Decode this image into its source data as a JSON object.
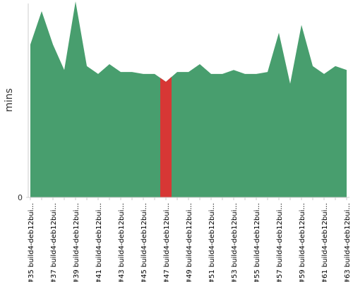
{
  "chart_data": {
    "type": "area",
    "y_label": "mins",
    "categories": [
      "#35 build4-deb12bui...",
      null,
      "#37 build4-deb12bui...",
      null,
      "#39 build4-deb12bui...",
      null,
      "#41 build4-deb12bui...",
      null,
      "#43 build4-deb12bui...",
      null,
      "#45 build4-deb12bui...",
      null,
      "#47 build4-deb12bui...",
      null,
      "#49 build4-deb12bui...",
      null,
      "#51 build4-deb12bui...",
      null,
      "#53 build4-deb12bui...",
      null,
      "#55 build4-deb12bui...",
      null,
      "#57 build4-deb12bui...",
      null,
      "#59 build4-deb12bui...",
      null,
      "#61 build4-deb12bui...",
      null,
      "#63 build4-deb12bui..."
    ],
    "series": [
      {
        "color": "#489e6e",
        "values": [
          78,
          95,
          78,
          65,
          100,
          67,
          63,
          68,
          64,
          64,
          63,
          63,
          59,
          64,
          64,
          68,
          63,
          63,
          65,
          63,
          63,
          64,
          84,
          58,
          88,
          67,
          63,
          67,
          65
        ],
        "point_colors": [
          "#489e6e",
          "#489e6e",
          "#489e6e",
          "#489e6e",
          "#489e6e",
          "#489e6e",
          "#489e6e",
          "#489e6e",
          "#489e6e",
          "#489e6e",
          "#489e6e",
          "#489e6e",
          "#d73735",
          "#489e6e",
          "#489e6e",
          "#489e6e",
          "#489e6e",
          "#489e6e",
          "#489e6e",
          "#489e6e",
          "#489e6e",
          "#489e6e",
          "#489e6e",
          "#489e6e",
          "#489e6e",
          "#489e6e",
          "#489e6e",
          "#489e6e",
          "#489e6e"
        ]
      }
    ],
    "ylim": [
      0,
      100
    ],
    "yticks": [
      0
    ],
    "grid": false
  }
}
